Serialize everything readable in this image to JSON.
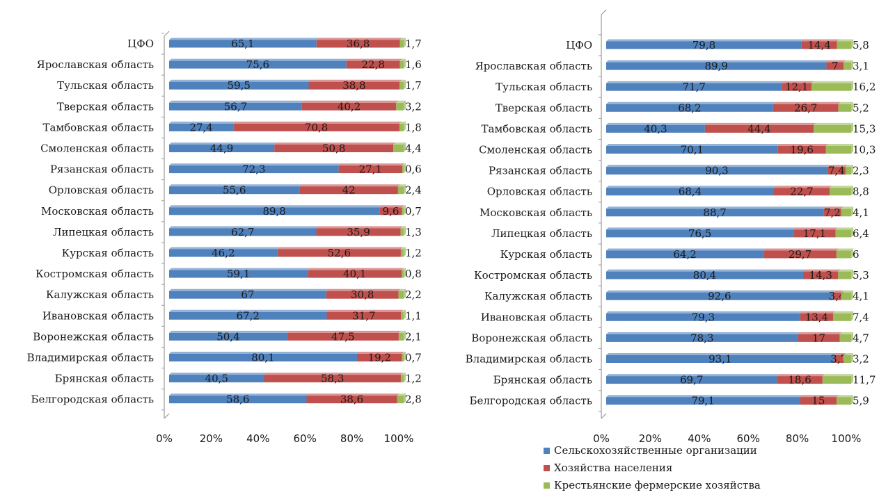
{
  "legend": {
    "entries": [
      {
        "label": "Сельскохозяйственные организации",
        "color": "#4F81BD"
      },
      {
        "label": "Хозяйства населения",
        "color": "#C0504D"
      },
      {
        "label": "Крестьянские фермерские хозяйства",
        "color": "#9BBB59"
      }
    ]
  },
  "chart_data": [
    {
      "type": "bar",
      "orientation": "horizontal",
      "stacked": "percent",
      "xlim": [
        0,
        100
      ],
      "x_ticks": [
        "0%",
        "20%",
        "40%",
        "60%",
        "80%",
        "100%"
      ],
      "grid": false,
      "categories": [
        "ЦФО",
        "Ярославская область",
        "Тульская область",
        "Тверская область",
        "Тамбовская область",
        "Смоленская область",
        "Рязанская область",
        "Орловская область",
        "Московская область",
        "Липецкая область",
        "Курская область",
        "Костромская область",
        "Калужская область",
        "Ивановская область",
        "Воронежская область",
        "Владимирская область",
        "Брянская область",
        "Белгородская область"
      ],
      "series": [
        {
          "name": "Сельскохозяйственные организации",
          "color": "#4F81BD",
          "values": [
            65.1,
            75.6,
            59.5,
            56.7,
            27.4,
            44.9,
            72.3,
            55.6,
            89.8,
            62.7,
            46.2,
            59.1,
            67,
            67.2,
            50.4,
            80.1,
            40.5,
            58.6
          ],
          "labels": [
            "65,1",
            "75,6",
            "59,5",
            "56,7",
            "27,4",
            "44,9",
            "72,3",
            "55,6",
            "89,8",
            "62,7",
            "46,2",
            "59,1",
            "67",
            "67,2",
            "50,4",
            "80,1",
            "40,5",
            "58,6"
          ]
        },
        {
          "name": "Хозяйства населения",
          "color": "#C0504D",
          "values": [
            36.8,
            22.8,
            38.8,
            40.2,
            70.8,
            50.8,
            27.1,
            42,
            9.6,
            35.9,
            52.6,
            40.1,
            30.8,
            31.7,
            47.5,
            19.2,
            58.3,
            38.6
          ],
          "labels": [
            "36,8",
            "22,8",
            "38,8",
            "40,2",
            "70,8",
            "50,8",
            "27,1",
            "42",
            "9,6",
            "35,9",
            "52,6",
            "40,1",
            "30,8",
            "31,7",
            "47,5",
            "19,2",
            "58,3",
            "38,6"
          ]
        },
        {
          "name": "Крестьянские фермерские хозяйства",
          "color": "#9BBB59",
          "values": [
            1.7,
            1.6,
            1.7,
            3.2,
            1.8,
            4.4,
            0.6,
            2.4,
            0.7,
            1.3,
            1.2,
            0.8,
            2.2,
            1.1,
            2.1,
            0.7,
            1.2,
            2.8
          ],
          "labels": [
            "1,7",
            "1,6",
            "1,7",
            "3,2",
            "1,8",
            "4,4",
            "0,6",
            "2,4",
            "0,7",
            "1,3",
            "1,2",
            "0,8",
            "2,2",
            "1,1",
            "2,1",
            "0,7",
            "1,2",
            "2,8"
          ]
        }
      ]
    },
    {
      "type": "bar",
      "orientation": "horizontal",
      "stacked": "percent",
      "xlim": [
        0,
        100
      ],
      "x_ticks": [
        "0%",
        "20%",
        "40%",
        "60%",
        "80%",
        "100%"
      ],
      "grid": false,
      "legend": "bottom",
      "categories": [
        "ЦФО",
        "Ярославская область",
        "Тульская область",
        "Тверская область",
        "Тамбовская область",
        "Смоленская область",
        "Рязанская область",
        "Орловская область",
        "Московская область",
        "Липецкая область",
        "Курская область",
        "Костромская область",
        "Калужская область",
        "Ивановская область",
        "Воронежская область",
        "Владимирская область",
        "Брянская область",
        "Белгородская область"
      ],
      "series": [
        {
          "name": "Сельскохозяйственные организации",
          "color": "#4F81BD",
          "values": [
            79.8,
            89.9,
            71.7,
            68.2,
            40.3,
            70.1,
            90.3,
            68.4,
            88.7,
            76.5,
            64.2,
            80.4,
            92.6,
            79.3,
            78.3,
            93.1,
            69.7,
            79.1
          ],
          "labels": [
            "79,8",
            "89,9",
            "71,7",
            "68,2",
            "40,3",
            "70,1",
            "90,3",
            "68,4",
            "88,7",
            "76,5",
            "64,2",
            "80,4",
            "92,6",
            "79,3",
            "78,3",
            "93,1",
            "69,7",
            "79,1"
          ]
        },
        {
          "name": "Хозяйства населения",
          "color": "#C0504D",
          "values": [
            14.4,
            7,
            12.1,
            26.7,
            44.4,
            19.6,
            7.4,
            22.7,
            7.2,
            17.1,
            29.7,
            14.3,
            3.4,
            13.4,
            17,
            3.7,
            18.6,
            15
          ],
          "labels": [
            "14,4",
            "7",
            "12,1",
            "26,7",
            "44,4",
            "19,6",
            "7,4",
            "22,7",
            "7,2",
            "17,1",
            "29,7",
            "14,3",
            "3,4",
            "13,4",
            "17",
            "3,7",
            "18,6",
            "15"
          ]
        },
        {
          "name": "Крестьянские фермерские хозяйства",
          "color": "#9BBB59",
          "values": [
            5.8,
            3.1,
            16.2,
            5.2,
            15.3,
            10.3,
            2.3,
            8.8,
            4.1,
            6.4,
            6,
            5.3,
            4.1,
            7.4,
            4.7,
            3.2,
            11.7,
            5.9
          ],
          "labels": [
            "5,8",
            "3,1",
            "16,2",
            "5,2",
            "15,3",
            "10,3",
            "2,3",
            "8,8",
            "4,1",
            "6,4",
            "6",
            "5,3",
            "4,1",
            "7,4",
            "4,7",
            "3,2",
            "11,7",
            "5,9"
          ]
        }
      ]
    }
  ]
}
